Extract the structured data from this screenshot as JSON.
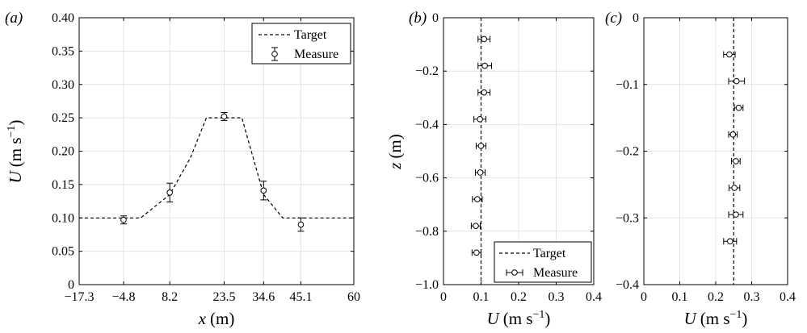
{
  "chart_data": [
    {
      "id": "a",
      "type": "line",
      "panel_label": "(a)",
      "xlabel": "x",
      "xlabel_unit": "(m)",
      "ylabel": "U",
      "ylabel_unit": "(m s",
      "ylabel_unit_sup": "−1",
      "ylabel_unit_close": ")",
      "xlim": [
        -17.3,
        60
      ],
      "ylim": [
        0,
        0.4
      ],
      "xticks": [
        -17.3,
        -4.8,
        8.2,
        23.5,
        34.6,
        45.1,
        60
      ],
      "xtick_labels": [
        "−17.3",
        "−4.8",
        "8.2",
        "23.5",
        "34.6",
        "45.1",
        "60"
      ],
      "yticks": [
        0,
        0.05,
        0.1,
        0.15,
        0.2,
        0.25,
        0.3,
        0.35,
        0.4
      ],
      "ytick_labels": [
        "0",
        "0.05",
        "0.10",
        "0.15",
        "0.20",
        "0.25",
        "0.30",
        "0.35",
        "0.40"
      ],
      "grid": true,
      "legend": {
        "placement": "top-right",
        "entries": [
          "Target",
          "Measure"
        ]
      },
      "series": [
        {
          "name": "Target",
          "style": "dashed",
          "x": [
            -17.3,
            -4.8,
            0,
            8.2,
            14,
            18.5,
            23.5,
            28.5,
            34.6,
            40,
            45.1,
            60
          ],
          "y": [
            0.1,
            0.1,
            0.1,
            0.135,
            0.19,
            0.25,
            0.25,
            0.25,
            0.135,
            0.1,
            0.1,
            0.1
          ]
        },
        {
          "name": "Measure",
          "style": "errorbar-y",
          "x": [
            -4.8,
            8.2,
            23.5,
            34.6,
            45.1
          ],
          "y": [
            0.097,
            0.138,
            0.252,
            0.141,
            0.09
          ],
          "err": [
            0.006,
            0.014,
            0.006,
            0.014,
            0.01
          ]
        }
      ]
    },
    {
      "id": "b",
      "type": "scatter",
      "panel_label": "(b)",
      "xlabel": "U",
      "xlabel_unit": "(m s",
      "xlabel_unit_sup": "−1",
      "xlabel_unit_close": ")",
      "ylabel": "z",
      "ylabel_unit": "(m)",
      "xlim": [
        0,
        0.4
      ],
      "ylim": [
        -1,
        0
      ],
      "xticks": [
        0,
        0.1,
        0.2,
        0.3,
        0.4
      ],
      "xtick_labels": [
        "0",
        "0.1",
        "0.2",
        "0.3",
        "0.4"
      ],
      "yticks": [
        -1,
        -0.8,
        -0.6,
        -0.4,
        -0.2,
        0
      ],
      "ytick_labels": [
        "−1.0",
        "−0.8",
        "−0.6",
        "−0.4",
        "−0.2",
        "0"
      ],
      "grid": true,
      "legend": {
        "placement": "bottom-right",
        "entries": [
          "Target",
          "Measure"
        ]
      },
      "target_x": 0.1,
      "series": [
        {
          "name": "Measure",
          "style": "errorbar-x",
          "x": [
            0.108,
            0.11,
            0.108,
            0.097,
            0.1,
            0.098,
            0.09,
            0.086,
            0.088
          ],
          "y": [
            -0.08,
            -0.18,
            -0.28,
            -0.38,
            -0.48,
            -0.58,
            -0.68,
            -0.78,
            -0.88
          ],
          "err": [
            0.016,
            0.018,
            0.016,
            0.016,
            0.013,
            0.013,
            0.013,
            0.012,
            0.012
          ]
        }
      ]
    },
    {
      "id": "c",
      "type": "scatter",
      "panel_label": "(c)",
      "xlabel": "U",
      "xlabel_unit": "(m s",
      "xlabel_unit_sup": "−1",
      "xlabel_unit_close": ")",
      "xlim": [
        0,
        0.4
      ],
      "ylim": [
        -0.4,
        0
      ],
      "xticks": [
        0,
        0.1,
        0.2,
        0.3,
        0.4
      ],
      "xtick_labels": [
        "0",
        "0.1",
        "0.2",
        "0.3",
        "0.4"
      ],
      "yticks": [
        -0.4,
        -0.3,
        -0.2,
        -0.1,
        0
      ],
      "ytick_labels": [
        "−0.4",
        "−0.3",
        "−0.2",
        "−0.1",
        "0"
      ],
      "grid": true,
      "target_x": 0.25,
      "series": [
        {
          "name": "Measure",
          "style": "errorbar-x",
          "x": [
            0.238,
            0.258,
            0.264,
            0.248,
            0.256,
            0.252,
            0.256,
            0.24
          ],
          "y": [
            -0.055,
            -0.095,
            -0.135,
            -0.175,
            -0.215,
            -0.255,
            -0.295,
            -0.335
          ],
          "err": [
            0.016,
            0.022,
            0.012,
            0.012,
            0.012,
            0.015,
            0.02,
            0.018
          ]
        }
      ]
    }
  ]
}
